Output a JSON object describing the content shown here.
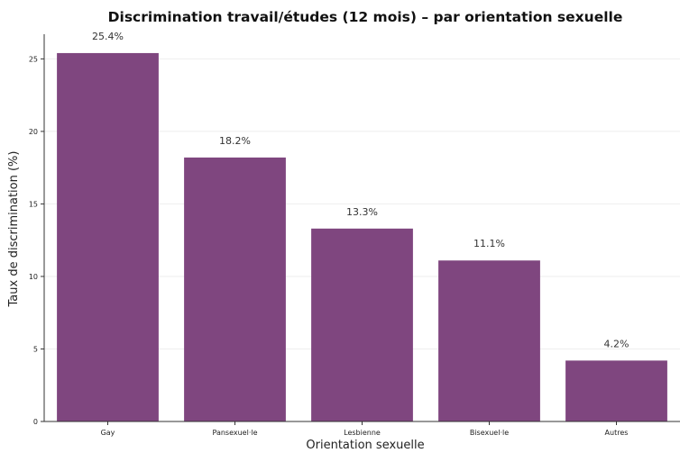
{
  "chart_data": {
    "type": "bar",
    "title": "Discrimination travail/études (12 mois) – par orientation sexuelle",
    "xlabel": "Orientation sexuelle",
    "ylabel": "Taux de discrimination (%)",
    "categories": [
      "Gay",
      "Pansexuel·le",
      "Lesbienne",
      "Bisexuel·le",
      "Autres"
    ],
    "values": [
      25.4,
      18.2,
      13.3,
      11.1,
      4.2
    ],
    "value_labels": [
      "25.4%",
      "18.2%",
      "13.3%",
      "11.1%",
      "4.2%"
    ],
    "yticks": [
      0,
      5,
      10,
      15,
      20,
      25
    ],
    "ylim": [
      0,
      26.7
    ],
    "grid": true,
    "bar_color": "#7f467f"
  }
}
